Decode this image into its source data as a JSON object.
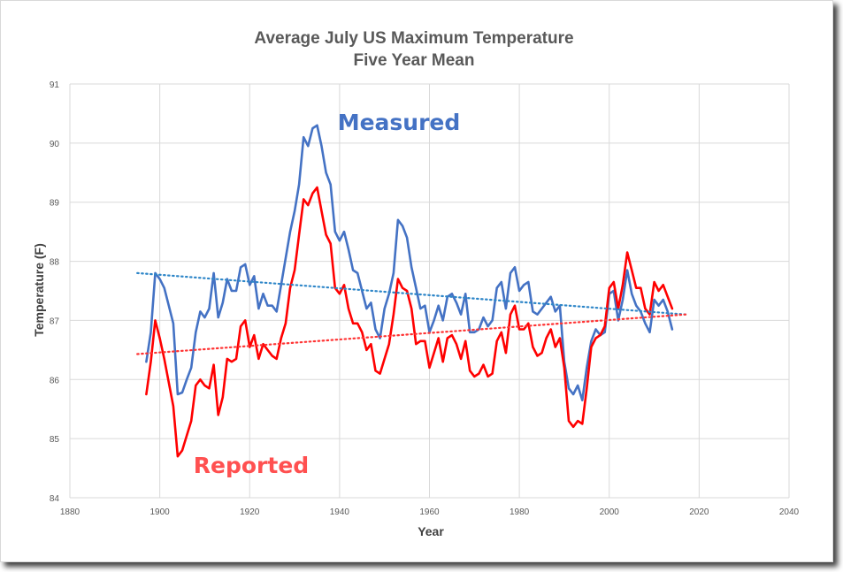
{
  "chart_data": {
    "type": "line",
    "title": "Average July US Maximum Temperature",
    "subtitle": "Five Year Mean",
    "xlabel": "Year",
    "ylabel": "Temperature (F)",
    "xlim": [
      1880,
      2040
    ],
    "ylim": [
      84,
      91
    ],
    "x_ticks": [
      "1880",
      "1900",
      "1920",
      "1940",
      "1960",
      "1980",
      "2000",
      "2020",
      "2040"
    ],
    "y_ticks": [
      "84",
      "85",
      "86",
      "87",
      "88",
      "89",
      "90",
      "91"
    ],
    "grid": true,
    "annotations": [
      {
        "text": "Measured",
        "color": "#4472C4"
      },
      {
        "text": "Reported",
        "color": "#FF5050"
      }
    ],
    "series": [
      {
        "name": "Measured",
        "color": "#4472C4",
        "x": [
          1897,
          1898,
          1899,
          1900,
          1901,
          1902,
          1903,
          1904,
          1905,
          1906,
          1907,
          1908,
          1909,
          1910,
          1911,
          1912,
          1913,
          1914,
          1915,
          1916,
          1917,
          1918,
          1919,
          1920,
          1921,
          1922,
          1923,
          1924,
          1925,
          1926,
          1927,
          1928,
          1929,
          1930,
          1931,
          1932,
          1933,
          1934,
          1935,
          1936,
          1937,
          1938,
          1939,
          1940,
          1941,
          1942,
          1943,
          1944,
          1945,
          1946,
          1947,
          1948,
          1949,
          1950,
          1951,
          1952,
          1953,
          1954,
          1955,
          1956,
          1957,
          1958,
          1959,
          1960,
          1961,
          1962,
          1963,
          1964,
          1965,
          1966,
          1967,
          1968,
          1969,
          1970,
          1971,
          1972,
          1973,
          1974,
          1975,
          1976,
          1977,
          1978,
          1979,
          1980,
          1981,
          1982,
          1983,
          1984,
          1985,
          1986,
          1987,
          1988,
          1989,
          1990,
          1991,
          1992,
          1993,
          1994,
          1995,
          1996,
          1997,
          1998,
          1999,
          2000,
          2001,
          2002,
          2003,
          2004,
          2005,
          2006,
          2007,
          2008,
          2009,
          2010,
          2011,
          2012,
          2013,
          2014
        ],
        "y": [
          86.3,
          86.8,
          87.8,
          87.7,
          87.55,
          87.25,
          86.95,
          85.75,
          85.78,
          86.0,
          86.2,
          86.8,
          87.15,
          87.05,
          87.2,
          87.8,
          87.05,
          87.3,
          87.7,
          87.5,
          87.5,
          87.9,
          87.95,
          87.6,
          87.75,
          87.2,
          87.45,
          87.25,
          87.25,
          87.15,
          87.6,
          88.05,
          88.5,
          88.85,
          89.3,
          90.1,
          89.95,
          90.25,
          90.3,
          89.95,
          89.5,
          89.3,
          88.5,
          88.35,
          88.5,
          88.2,
          87.85,
          87.8,
          87.5,
          87.2,
          87.3,
          86.85,
          86.7,
          87.2,
          87.45,
          87.8,
          88.7,
          88.6,
          88.4,
          87.9,
          87.55,
          87.2,
          87.25,
          86.8,
          87.0,
          87.25,
          87.0,
          87.4,
          87.45,
          87.3,
          87.1,
          87.45,
          86.8,
          86.8,
          86.85,
          87.05,
          86.9,
          87.0,
          87.55,
          87.65,
          87.2,
          87.8,
          87.9,
          87.5,
          87.6,
          87.65,
          87.15,
          87.1,
          87.2,
          87.3,
          87.4,
          87.15,
          87.25,
          86.3,
          85.85,
          85.75,
          85.9,
          85.65,
          86.2,
          86.65,
          86.85,
          86.75,
          86.8,
          87.45,
          87.5,
          87.0,
          87.35,
          87.85,
          87.45,
          87.25,
          87.15,
          86.95,
          86.8,
          87.35,
          87.25,
          87.35,
          87.15,
          86.85
        ]
      },
      {
        "name": "Reported",
        "color": "#FF0000",
        "x": [
          1897,
          1898,
          1899,
          1900,
          1901,
          1902,
          1903,
          1904,
          1905,
          1906,
          1907,
          1908,
          1909,
          1910,
          1911,
          1912,
          1913,
          1914,
          1915,
          1916,
          1917,
          1918,
          1919,
          1920,
          1921,
          1922,
          1923,
          1924,
          1925,
          1926,
          1927,
          1928,
          1929,
          1930,
          1931,
          1932,
          1933,
          1934,
          1935,
          1936,
          1937,
          1938,
          1939,
          1940,
          1941,
          1942,
          1943,
          1944,
          1945,
          1946,
          1947,
          1948,
          1949,
          1950,
          1951,
          1952,
          1953,
          1954,
          1955,
          1956,
          1957,
          1958,
          1959,
          1960,
          1961,
          1962,
          1963,
          1964,
          1965,
          1966,
          1967,
          1968,
          1969,
          1970,
          1971,
          1972,
          1973,
          1974,
          1975,
          1976,
          1977,
          1978,
          1979,
          1980,
          1981,
          1982,
          1983,
          1984,
          1985,
          1986,
          1987,
          1988,
          1989,
          1990,
          1991,
          1992,
          1993,
          1994,
          1995,
          1996,
          1997,
          1998,
          1999,
          2000,
          2001,
          2002,
          2003,
          2004,
          2005,
          2006,
          2007,
          2008,
          2009,
          2010,
          2011,
          2012,
          2013,
          2014
        ],
        "y": [
          85.75,
          86.3,
          87.0,
          86.7,
          86.35,
          85.95,
          85.55,
          84.7,
          84.8,
          85.05,
          85.3,
          85.9,
          86.0,
          85.9,
          85.85,
          86.25,
          85.4,
          85.7,
          86.35,
          86.3,
          86.35,
          86.9,
          87.0,
          86.55,
          86.75,
          86.35,
          86.6,
          86.5,
          86.4,
          86.35,
          86.7,
          86.95,
          87.55,
          87.85,
          88.45,
          89.05,
          88.95,
          89.15,
          89.25,
          88.85,
          88.45,
          88.3,
          87.55,
          87.45,
          87.6,
          87.2,
          86.95,
          86.95,
          86.8,
          86.5,
          86.6,
          86.15,
          86.1,
          86.35,
          86.6,
          87.1,
          87.7,
          87.55,
          87.5,
          87.2,
          86.6,
          86.65,
          86.65,
          86.2,
          86.45,
          86.7,
          86.3,
          86.7,
          86.75,
          86.6,
          86.35,
          86.65,
          86.15,
          86.05,
          86.1,
          86.25,
          86.05,
          86.1,
          86.65,
          86.8,
          86.45,
          87.1,
          87.25,
          86.85,
          86.85,
          86.95,
          86.55,
          86.4,
          86.45,
          86.7,
          86.85,
          86.55,
          86.7,
          86.2,
          85.3,
          85.2,
          85.3,
          85.25,
          85.85,
          86.55,
          86.7,
          86.75,
          86.9,
          87.55,
          87.65,
          87.2,
          87.6,
          88.15,
          87.85,
          87.55,
          87.55,
          87.2,
          87.1,
          87.65,
          87.5,
          87.6,
          87.4,
          87.2
        ]
      },
      {
        "name": "Measured trend",
        "color": "#2E86C8",
        "style": "dotted",
        "x": [
          1895,
          2017
        ],
        "y": [
          87.8,
          87.1
        ]
      },
      {
        "name": "Reported trend",
        "color": "#FF3333",
        "style": "dotted",
        "x": [
          1895,
          2017
        ],
        "y": [
          86.43,
          87.1
        ]
      }
    ]
  },
  "colors": {
    "gridline": "#d9d9d9",
    "axis": "#bfbfbf",
    "text": "#595959"
  }
}
